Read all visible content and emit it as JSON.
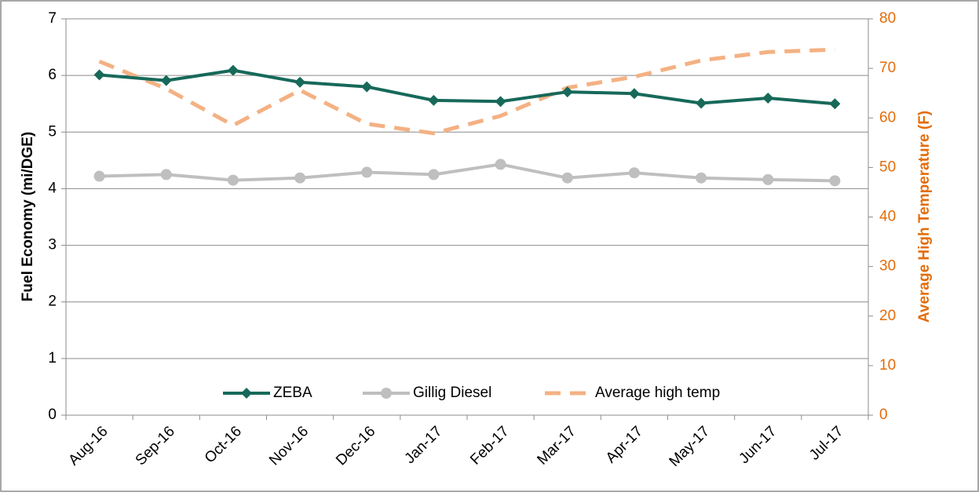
{
  "chart_data": {
    "type": "line",
    "categories": [
      "Aug-16",
      "Sep-16",
      "Oct-16",
      "Nov-16",
      "Dec-16",
      "Jan-17",
      "Feb-17",
      "Mar-17",
      "Apr-17",
      "May-17",
      "Jun-17",
      "Jul-17"
    ],
    "series": [
      {
        "name": "ZEBA",
        "color": "#17695a",
        "marker": "diamond",
        "line_style": "solid",
        "axis": "y",
        "values": [
          6.01,
          5.91,
          6.09,
          5.88,
          5.8,
          5.56,
          5.54,
          5.71,
          5.68,
          5.51,
          5.6,
          5.5
        ]
      },
      {
        "name": "Gillig Diesel",
        "color": "#bfbfbf",
        "marker": "circle",
        "line_style": "solid",
        "axis": "y",
        "values": [
          4.22,
          4.25,
          4.15,
          4.19,
          4.29,
          4.25,
          4.43,
          4.19,
          4.28,
          4.19,
          4.16,
          4.14
        ]
      },
      {
        "name": "Average high temp",
        "color": "#f4b183",
        "marker": "none",
        "line_style": "dashed",
        "axis": "y2",
        "values": [
          71.4,
          65.9,
          58.5,
          65.6,
          58.8,
          56.9,
          60.4,
          66.1,
          68.3,
          71.6,
          73.3,
          73.8
        ]
      }
    ],
    "ylabel": "Fuel Economy (mi/DGE)",
    "y2label": "Average High Temperature (F)",
    "ylim": [
      0,
      7
    ],
    "yticks": [
      0,
      1,
      2,
      3,
      4,
      5,
      6,
      7
    ],
    "y2lim": [
      0,
      80
    ],
    "y2ticks": [
      0,
      10,
      20,
      30,
      40,
      50,
      60,
      70,
      80
    ],
    "y2color": "#e36c09",
    "grid": true,
    "legend": "bottom"
  }
}
